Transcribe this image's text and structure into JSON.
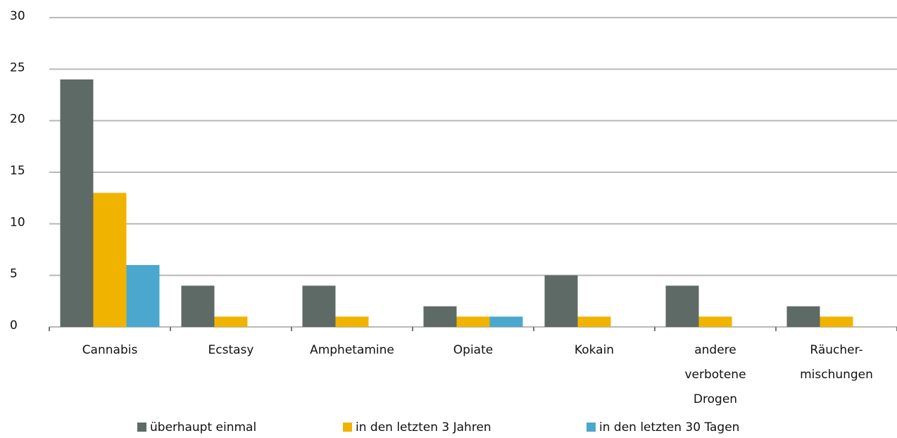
{
  "chart_data": {
    "type": "bar",
    "categories": [
      "Cannabis",
      "Ecstasy",
      "Amphetamine",
      "Opiate",
      "Kokain",
      "andere\nverbotene\nDrogen",
      "Räucher-\nmischungen"
    ],
    "series": [
      {
        "name": "überhaupt einmal",
        "color": "#5e6a65",
        "values": [
          24,
          4,
          4,
          2,
          5,
          4,
          2
        ]
      },
      {
        "name": "in den letzten 3 Jahren",
        "color": "#f0b400",
        "values": [
          13,
          1,
          1,
          1,
          1,
          1,
          1
        ]
      },
      {
        "name": "in den letzten 30 Tagen",
        "color": "#4aa8cf",
        "values": [
          6,
          0,
          0,
          1,
          0,
          0,
          0
        ]
      }
    ],
    "ylim": [
      0,
      30
    ],
    "yticks": [
      0,
      5,
      10,
      15,
      20,
      25,
      30
    ],
    "grid": true,
    "legend": "bottom"
  }
}
